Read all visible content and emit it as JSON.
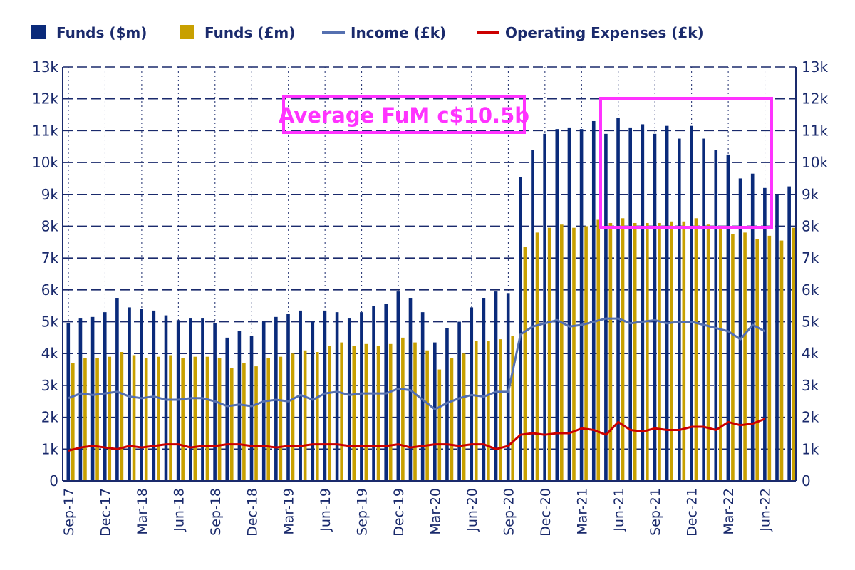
{
  "chart_data": {
    "type": "bar",
    "colors": {
      "funds_usd": "#0a2a7a",
      "funds_gbp": "#c8a000",
      "income": "#5570b0",
      "opex": "#cc0000",
      "annotation": "#ff33ff",
      "axis": "#1a2a6c"
    },
    "legend": {
      "placement": "top",
      "entries": [
        "Funds ($m)",
        "Funds (£m)",
        "Income (£k)",
        "Operating Expenses (£k)"
      ]
    },
    "grid": true,
    "ylim": [
      0,
      13000
    ],
    "yticks": [
      "0",
      "1k",
      "2k",
      "3k",
      "4k",
      "5k",
      "6k",
      "7k",
      "8k",
      "9k",
      "10k",
      "11k",
      "12k",
      "13k"
    ],
    "xticks": [
      {
        "index": 0,
        "label": "Sep-17"
      },
      {
        "index": 3,
        "label": "Dec-17"
      },
      {
        "index": 6,
        "label": "Mar-18"
      },
      {
        "index": 9,
        "label": "Jun-18"
      },
      {
        "index": 12,
        "label": "Sep-18"
      },
      {
        "index": 15,
        "label": "Dec-18"
      },
      {
        "index": 18,
        "label": "Mar-19"
      },
      {
        "index": 21,
        "label": "Jun-19"
      },
      {
        "index": 24,
        "label": "Sep-19"
      },
      {
        "index": 27,
        "label": "Dec-19"
      },
      {
        "index": 30,
        "label": "Mar-20"
      },
      {
        "index": 33,
        "label": "Jun-20"
      },
      {
        "index": 36,
        "label": "Sep-20"
      },
      {
        "index": 39,
        "label": "Dec-20"
      },
      {
        "index": 42,
        "label": "Mar-21"
      },
      {
        "index": 45,
        "label": "Jun-21"
      },
      {
        "index": 48,
        "label": "Sep-21"
      },
      {
        "index": 51,
        "label": "Dec-21"
      },
      {
        "index": 54,
        "label": "Mar-22"
      },
      {
        "index": 57,
        "label": "Jun-22"
      }
    ],
    "series": [
      {
        "name": "Funds ($m)",
        "kind": "bar",
        "values": [
          4950,
          5100,
          5150,
          5300,
          5750,
          5450,
          5400,
          5350,
          5200,
          5050,
          5100,
          5100,
          4950,
          4500,
          4700,
          4550,
          5000,
          5150,
          5250,
          5350,
          5000,
          5350,
          5300,
          5100,
          5300,
          5500,
          5550,
          5950,
          5750,
          5300,
          4350,
          4800,
          5000,
          5450,
          5750,
          5950,
          5900,
          9550,
          10400,
          10900,
          11050,
          11100,
          11050,
          11300,
          10900,
          11400,
          11100,
          11200,
          10900,
          11150,
          10750,
          11150,
          10750,
          10400,
          10250,
          9500,
          9650,
          9200,
          9000,
          9250
        ]
      },
      {
        "name": "Funds (£m)",
        "kind": "bar",
        "values": [
          3700,
          3850,
          3850,
          3900,
          4050,
          3950,
          3850,
          3900,
          3950,
          3850,
          3900,
          3900,
          3850,
          3550,
          3700,
          3600,
          3850,
          3900,
          4000,
          4100,
          4050,
          4250,
          4350,
          4250,
          4300,
          4250,
          4300,
          4500,
          4350,
          4100,
          3500,
          3850,
          4000,
          4400,
          4400,
          4450,
          4550,
          7350,
          7800,
          7950,
          8050,
          7950,
          8000,
          8200,
          8100,
          8250,
          8100,
          8100,
          8100,
          8150,
          8150,
          8250,
          8050,
          7950,
          7750,
          7800,
          7600,
          7700,
          7550,
          7950
        ]
      },
      {
        "name": "Income (£k)",
        "kind": "line",
        "values": [
          2600,
          2750,
          2700,
          2750,
          2800,
          2650,
          2600,
          2650,
          2550,
          2550,
          2600,
          2600,
          2500,
          2350,
          2400,
          2350,
          2500,
          2550,
          2500,
          2700,
          2550,
          2750,
          2800,
          2700,
          2750,
          2750,
          2750,
          2900,
          2850,
          2550,
          2250,
          2450,
          2600,
          2700,
          2650,
          2800,
          2800,
          4600,
          4850,
          4950,
          5050,
          4850,
          4900,
          5000,
          5100,
          5100,
          4950,
          5000,
          5050,
          4950,
          5000,
          5000,
          4900,
          4800,
          4700,
          4450,
          4900,
          4700
        ]
      },
      {
        "name": "Operating Expenses (£k)",
        "kind": "line",
        "values": [
          950,
          1050,
          1100,
          1050,
          1000,
          1100,
          1050,
          1100,
          1150,
          1150,
          1050,
          1100,
          1100,
          1150,
          1150,
          1100,
          1100,
          1050,
          1100,
          1100,
          1150,
          1150,
          1150,
          1100,
          1100,
          1100,
          1100,
          1150,
          1050,
          1100,
          1150,
          1150,
          1100,
          1150,
          1150,
          1000,
          1100,
          1450,
          1500,
          1450,
          1500,
          1500,
          1650,
          1600,
          1450,
          1850,
          1600,
          1550,
          1650,
          1600,
          1600,
          1700,
          1700,
          1600,
          1850,
          1750,
          1800,
          1950
        ]
      }
    ],
    "annotation": {
      "text": "Average FuM c$10.5b"
    }
  }
}
